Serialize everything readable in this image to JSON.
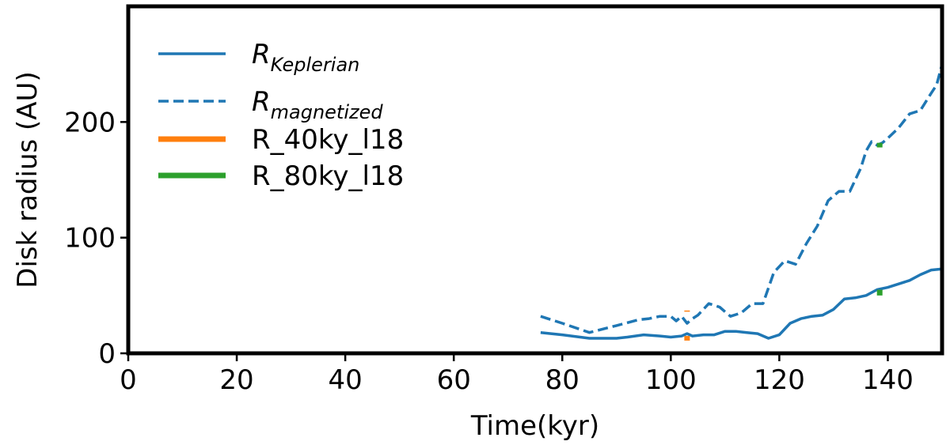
{
  "chart_data": {
    "type": "line",
    "xlabel": "Time(kyr)",
    "ylabel": "Disk radius (AU)",
    "xlim": [
      0,
      150
    ],
    "ylim": [
      0,
      300
    ],
    "x_ticks": [
      0,
      20,
      40,
      60,
      80,
      100,
      120,
      140
    ],
    "y_ticks": [
      0,
      100,
      200
    ],
    "grid": false,
    "legend_position": "top-left",
    "colors": {
      "blue": "#1f77b4",
      "orange": "#ff7f0e",
      "green": "#2ca02c"
    },
    "series": [
      {
        "name": "R",
        "subscript": "Keplerian",
        "style": "solid",
        "color": "#1f77b4",
        "x": [
          76,
          80,
          85,
          90,
          92,
          95,
          98,
          100,
          102,
          103,
          104,
          106,
          108,
          110,
          112,
          114,
          116,
          118,
          120,
          122,
          124,
          126,
          128,
          130,
          132,
          134,
          136,
          138,
          140,
          142,
          144,
          146,
          148,
          150
        ],
        "y": [
          18,
          16,
          13,
          13,
          14,
          16,
          15,
          14,
          15,
          17,
          15,
          16,
          16,
          19,
          19,
          18,
          17,
          13,
          16,
          26,
          30,
          32,
          33,
          38,
          47,
          48,
          50,
          55,
          57,
          60,
          63,
          68,
          72,
          73
        ]
      },
      {
        "name": "R",
        "subscript": "magnetized",
        "style": "dashed",
        "color": "#1f77b4",
        "x": [
          76,
          80,
          85,
          90,
          94,
          96,
          98,
          100,
          101,
          102,
          103,
          104,
          105,
          107,
          109,
          111,
          113,
          115,
          117,
          119,
          121,
          123,
          125,
          127,
          129,
          131,
          133,
          135,
          136,
          137,
          138,
          139,
          140,
          142,
          144,
          146,
          148,
          149,
          150
        ],
        "y": [
          32,
          26,
          18,
          24,
          29,
          30,
          32,
          32,
          28,
          32,
          26,
          30,
          33,
          43,
          40,
          32,
          35,
          43,
          43,
          70,
          80,
          77,
          95,
          110,
          132,
          140,
          140,
          160,
          175,
          183,
          180,
          182,
          186,
          195,
          207,
          210,
          225,
          232,
          250
        ]
      },
      {
        "name": "R_40ky_l18",
        "style": "solid-thick",
        "color": "#ff7f0e",
        "segments": [
          {
            "x": 103,
            "y": [
              11,
              15
            ]
          },
          {
            "x": 103,
            "y": [
              36,
              37
            ]
          }
        ]
      },
      {
        "name": "R_80ky_l18",
        "style": "solid-thick",
        "color": "#2ca02c",
        "segments": [
          {
            "x": 138.5,
            "y": [
              50,
              55
            ]
          },
          {
            "x": 138.5,
            "y": [
              178,
              182
            ]
          }
        ]
      }
    ]
  }
}
